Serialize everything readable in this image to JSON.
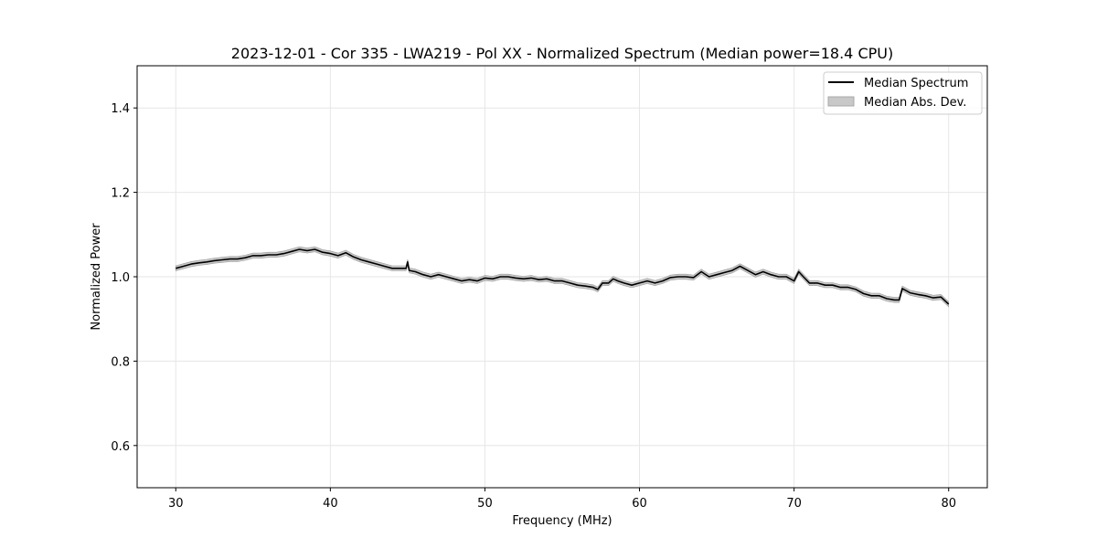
{
  "chart_data": {
    "type": "line",
    "title": "2023-12-01 - Cor 335 - LWA219 - Pol XX - Normalized Spectrum (Median power=18.4 CPU)",
    "xlabel": "Frequency (MHz)",
    "ylabel": "Normalized Power",
    "xlim": [
      27.5,
      82.5
    ],
    "ylim": [
      0.5,
      1.5
    ],
    "xticks": [
      30,
      40,
      50,
      60,
      70,
      80
    ],
    "xtick_labels": [
      "30",
      "40",
      "50",
      "60",
      "70",
      "80"
    ],
    "yticks": [
      0.6,
      0.8,
      1.0,
      1.2,
      1.4
    ],
    "ytick_labels": [
      "0.6",
      "0.8",
      "1.0",
      "1.2",
      "1.4"
    ],
    "grid": true,
    "legend_position": "top-right",
    "series": [
      {
        "name": "Median Spectrum",
        "color": "#000000",
        "x": [
          30,
          30.5,
          31,
          31.5,
          32,
          32.5,
          33,
          33.5,
          34,
          34.5,
          35,
          35.5,
          36,
          36.5,
          37,
          37.5,
          38,
          38.5,
          39,
          39.5,
          40,
          40.5,
          41,
          41.5,
          42,
          42.5,
          43,
          43.5,
          44,
          44.5,
          44.9,
          45,
          45.1,
          45.5,
          46,
          46.5,
          47,
          47.5,
          48,
          48.5,
          49,
          49.5,
          50,
          50.5,
          51,
          51.5,
          52,
          52.5,
          53,
          53.5,
          54,
          54.5,
          55,
          55.5,
          56,
          56.5,
          57,
          57.3,
          57.6,
          58,
          58.3,
          58.6,
          59,
          59.5,
          60,
          60.5,
          61,
          61.5,
          62,
          62.5,
          63,
          63.5,
          64,
          64.5,
          65,
          65.5,
          66,
          66.5,
          67,
          67.5,
          68,
          68.5,
          69,
          69.5,
          70,
          70.3,
          70.6,
          71,
          71.5,
          72,
          72.5,
          73,
          73.5,
          74,
          74.5,
          75,
          75.5,
          76,
          76.5,
          76.8,
          77,
          77.5,
          78,
          78.5,
          79,
          79.5,
          80
        ],
        "values": [
          1.02,
          1.025,
          1.03,
          1.033,
          1.035,
          1.038,
          1.04,
          1.042,
          1.042,
          1.045,
          1.05,
          1.05,
          1.052,
          1.052,
          1.055,
          1.06,
          1.065,
          1.062,
          1.065,
          1.058,
          1.055,
          1.05,
          1.057,
          1.047,
          1.04,
          1.035,
          1.03,
          1.025,
          1.02,
          1.02,
          1.02,
          1.035,
          1.015,
          1.012,
          1.005,
          1.0,
          1.005,
          1.0,
          0.995,
          0.99,
          0.993,
          0.99,
          0.997,
          0.995,
          1.0,
          1.0,
          0.997,
          0.995,
          0.997,
          0.993,
          0.995,
          0.99,
          0.99,
          0.985,
          0.98,
          0.978,
          0.975,
          0.97,
          0.985,
          0.985,
          0.995,
          0.99,
          0.985,
          0.98,
          0.985,
          0.99,
          0.985,
          0.99,
          0.998,
          1.0,
          1.0,
          0.998,
          1.012,
          1.0,
          1.005,
          1.01,
          1.015,
          1.025,
          1.015,
          1.005,
          1.012,
          1.005,
          1.0,
          1.0,
          0.99,
          1.012,
          1.0,
          0.985,
          0.985,
          0.98,
          0.98,
          0.975,
          0.975,
          0.97,
          0.96,
          0.955,
          0.955,
          0.948,
          0.945,
          0.945,
          0.972,
          0.962,
          0.958,
          0.955,
          0.95,
          0.952,
          0.935
        ]
      }
    ],
    "band": {
      "name": "Median Abs. Dev.",
      "color": "#c8c8c8",
      "half_width": 0.006
    },
    "legend": [
      "Median Spectrum",
      "Median Abs. Dev."
    ]
  }
}
